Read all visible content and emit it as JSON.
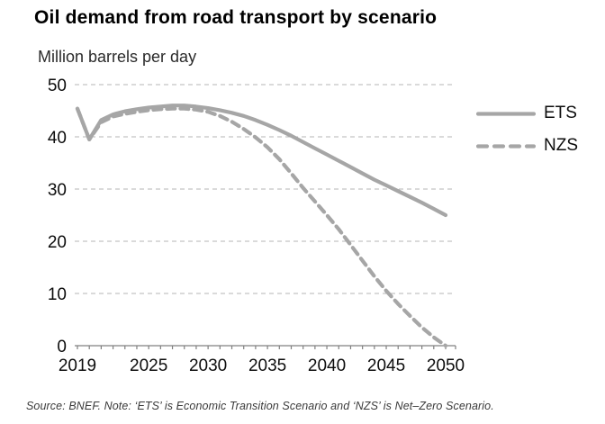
{
  "chart_data": {
    "type": "line",
    "title": "Oil demand from road transport by scenario",
    "ylabel": "Million barrels per day",
    "xlabel": "",
    "x": [
      2019,
      2020,
      2021,
      2022,
      2023,
      2024,
      2025,
      2026,
      2027,
      2028,
      2029,
      2030,
      2031,
      2032,
      2033,
      2034,
      2035,
      2036,
      2037,
      2038,
      2039,
      2040,
      2041,
      2042,
      2043,
      2044,
      2045,
      2046,
      2047,
      2048,
      2049,
      2050
    ],
    "series": [
      {
        "name": "ETS",
        "style": "solid",
        "values": [
          45.4,
          39.5,
          43.2,
          44.3,
          44.9,
          45.3,
          45.6,
          45.8,
          46.0,
          46.0,
          45.8,
          45.5,
          45.1,
          44.6,
          44.0,
          43.2,
          42.3,
          41.3,
          40.2,
          39.0,
          37.8,
          36.6,
          35.4,
          34.2,
          33.0,
          31.8,
          30.7,
          29.6,
          28.5,
          27.4,
          26.2,
          25.0
        ]
      },
      {
        "name": "NZS",
        "style": "dashed",
        "values": [
          45.4,
          39.5,
          42.8,
          43.9,
          44.4,
          44.8,
          45.1,
          45.3,
          45.4,
          45.4,
          45.2,
          44.8,
          44.0,
          42.9,
          41.5,
          39.9,
          38.0,
          35.7,
          33.0,
          30.2,
          27.6,
          25.0,
          22.3,
          19.3,
          16.3,
          13.3,
          10.5,
          8.0,
          5.7,
          3.5,
          1.6,
          0.0
        ]
      }
    ],
    "ylim": [
      0,
      50
    ],
    "yticks": [
      0,
      10,
      20,
      30,
      40,
      50
    ],
    "xticks": [
      2019,
      2025,
      2030,
      2035,
      2040,
      2045,
      2050
    ],
    "grid": "horizontal-dashed",
    "legend_position": "right",
    "line_color": "#a6a6a6",
    "grid_color": "#b5b5b5",
    "axis_color": "#808080",
    "text_color": "#0d0d0d"
  },
  "footer": {
    "source_note": "Source: BNEF. Note: ‘ETS’ is Economic Transition Scenario and ‘NZS’ is Net–Zero Scenario."
  }
}
